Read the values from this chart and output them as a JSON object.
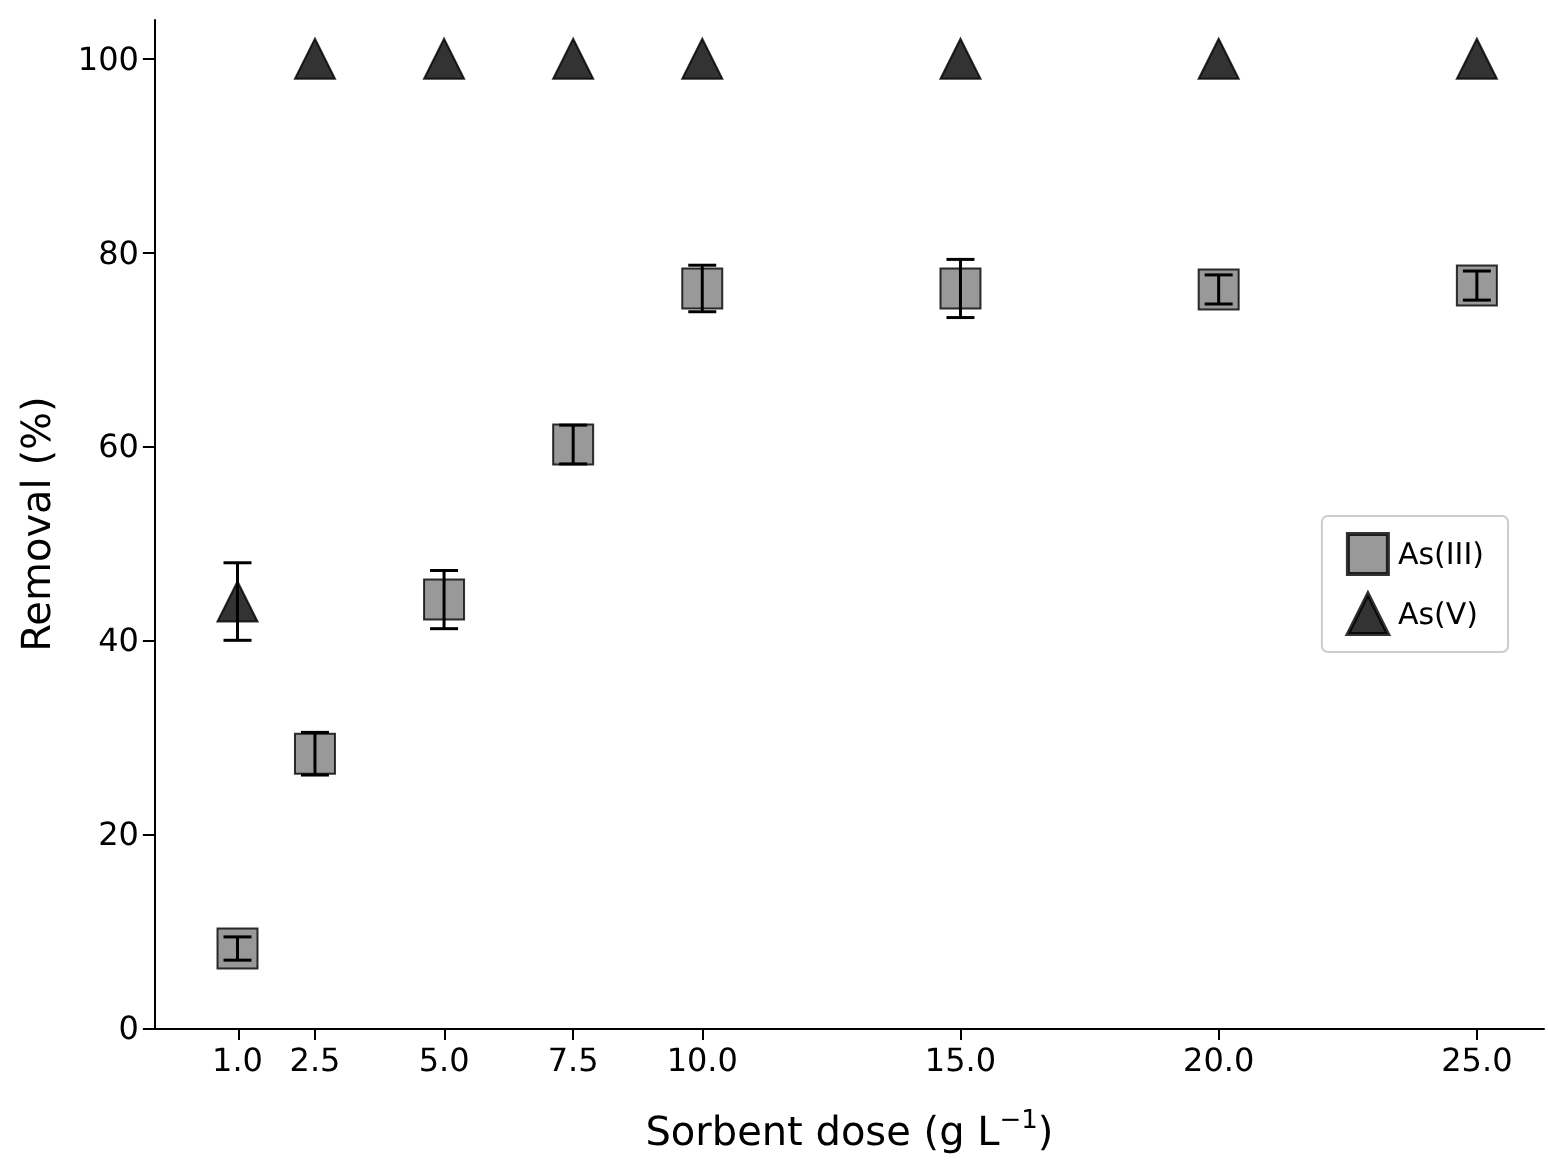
{
  "chart_data": {
    "type": "scatter",
    "xlabel": "Sorbent dose (g L$^{−1}$)",
    "ylabel": "Removal (%)",
    "x": [
      1,
      2.5,
      5,
      7.5,
      10,
      15,
      20,
      25
    ],
    "series": [
      {
        "name": "As(III)",
        "color": "#808080",
        "marker": "square",
        "values": [
          8.2,
          28.3,
          44.2,
          60.2,
          76.3,
          76.3,
          76.2,
          76.6
        ],
        "errors": [
          1.2,
          2.2,
          3,
          2,
          2.4,
          3,
          1.5,
          1.5
        ]
      },
      {
        "name": "As(V)",
        "color": "#000000",
        "marker": "triangle",
        "values": [
          44,
          100,
          100,
          100,
          100,
          100,
          100,
          100
        ],
        "errors": [
          [
            40,
            48
          ],
          null,
          null,
          null,
          null,
          null,
          null,
          null
        ]
      }
    ],
    "xlim": [
      -0.6,
      26.3
    ],
    "ylim": [
      0,
      104
    ],
    "xticks": [
      {
        "value": 1,
        "label": "1.0"
      },
      {
        "value": 2.5,
        "label": "2.5"
      },
      {
        "value": 5,
        "label": "5.0"
      },
      {
        "value": 7.5,
        "label": "7.5"
      },
      {
        "value": 10,
        "label": "10.0"
      },
      {
        "value": 15,
        "label": "15.0"
      },
      {
        "value": 20,
        "label": "20.0"
      },
      {
        "value": 25,
        "label": "25.0"
      }
    ],
    "yticks": [
      0,
      20,
      40,
      60,
      80,
      100
    ],
    "grid": false,
    "legend": "right"
  }
}
